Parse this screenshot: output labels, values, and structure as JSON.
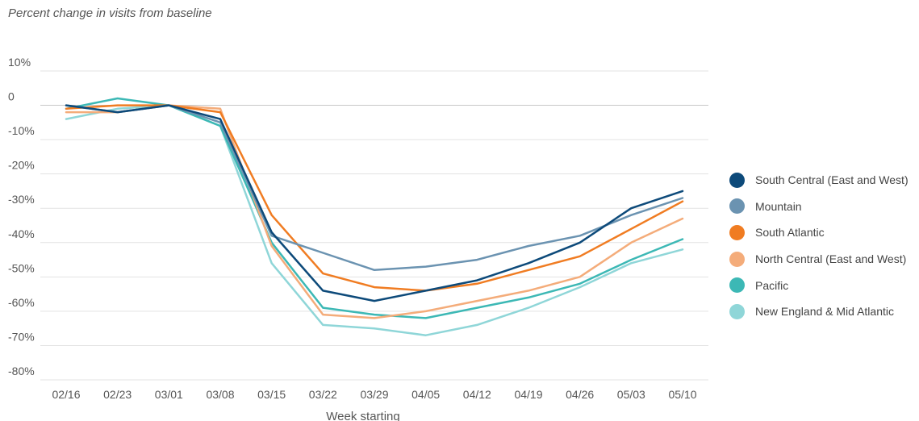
{
  "chart_data": {
    "type": "line",
    "title": "Percent change in visits from baseline",
    "xlabel": "Week starting",
    "ylabel": "",
    "ylim": [
      -80,
      10
    ],
    "yticks": [
      10,
      0,
      -10,
      -20,
      -30,
      -40,
      -50,
      -60,
      -70,
      -80
    ],
    "ytick_labels": [
      "10%",
      "0",
      "-10%",
      "-20%",
      "-30%",
      "-40%",
      "-50%",
      "-60%",
      "-70%",
      "-80%"
    ],
    "grid": true,
    "legend_position": "right",
    "categories": [
      "02/16",
      "02/23",
      "03/01",
      "03/08",
      "03/15",
      "03/22",
      "03/29",
      "04/05",
      "04/12",
      "04/19",
      "04/26",
      "05/03",
      "05/10"
    ],
    "series": [
      {
        "name": "South Central (East and West)",
        "color": "#0d4a7a",
        "values": [
          0,
          -2,
          0,
          -4,
          -37,
          -54,
          -57,
          -54,
          -51,
          -46,
          -40,
          -30,
          -25
        ]
      },
      {
        "name": "Mountain",
        "color": "#6b93b1",
        "values": [
          0,
          -2,
          0,
          -5,
          -38,
          -43,
          -48,
          -47,
          -45,
          -41,
          -38,
          -32,
          -27
        ]
      },
      {
        "name": "South Atlantic",
        "color": "#f07c22",
        "values": [
          -1,
          0,
          0,
          -2,
          -32,
          -49,
          -53,
          -54,
          -52,
          -48,
          -44,
          -36,
          -28
        ]
      },
      {
        "name": "North Central (East and West)",
        "color": "#f4ac7a",
        "values": [
          -2,
          -2,
          0,
          -1,
          -41,
          -61,
          -62,
          -60,
          -57,
          -54,
          -50,
          -40,
          -33
        ]
      },
      {
        "name": "Pacific",
        "color": "#3cb8b5",
        "values": [
          -1,
          2,
          0,
          -6,
          -40,
          -59,
          -61,
          -62,
          -59,
          -56,
          -52,
          -45,
          -39
        ]
      },
      {
        "name": "New England & Mid Atlantic",
        "color": "#8fd6d8",
        "values": [
          -4,
          -1,
          0,
          -6,
          -46,
          -64,
          -65,
          -67,
          -64,
          -59,
          -53,
          -46,
          -42
        ]
      }
    ]
  }
}
